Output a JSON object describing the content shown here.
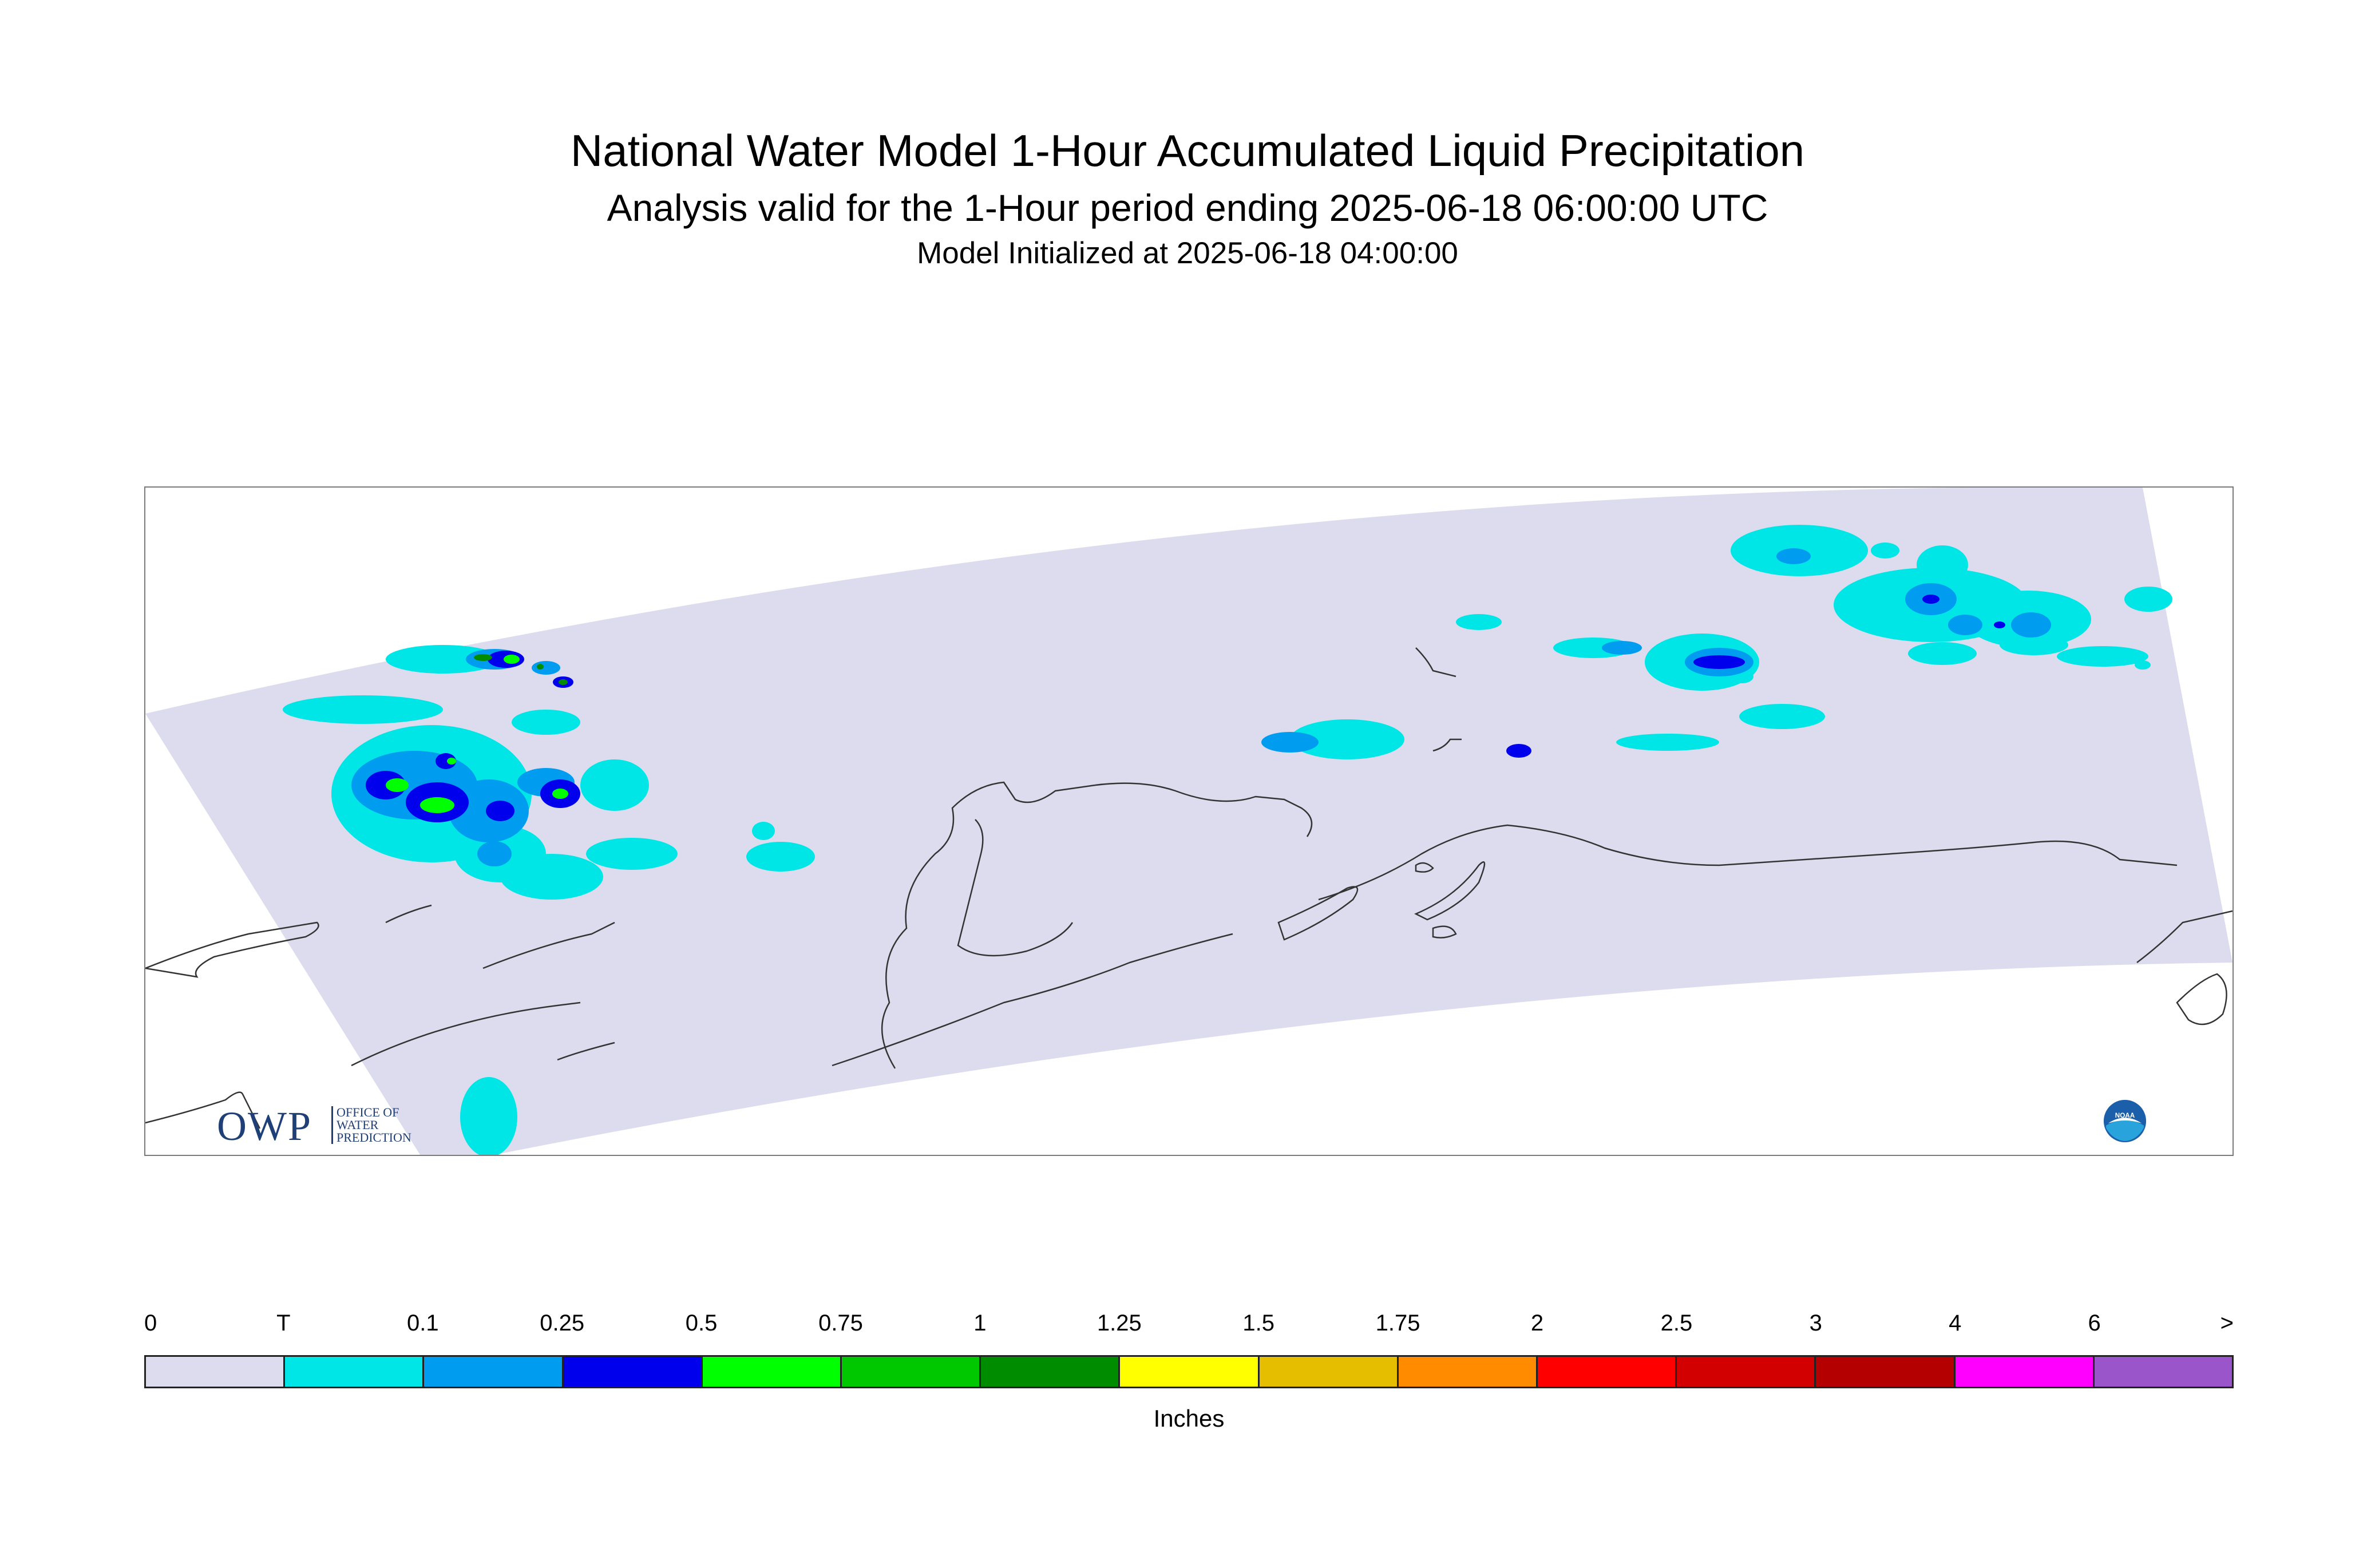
{
  "header": {
    "title": "National Water Model 1-Hour Accumulated Liquid Precipitation",
    "subtitle": "Analysis valid for the 1-Hour period ending 2025-06-18 06:00:00 UTC",
    "initialized": "Model Initialized at 2025-06-18 04:00:00"
  },
  "logos": {
    "owp_letters": "OWP",
    "owp_text": "OFFICE OF\nWATER\nPREDICTION",
    "noaa_text": "NOAA"
  },
  "legend": {
    "labels": [
      "0",
      "T",
      "0.1",
      "0.25",
      "0.5",
      "0.75",
      "1",
      "1.25",
      "1.5",
      "1.75",
      "2",
      "2.5",
      "3",
      "4",
      "6",
      ">"
    ],
    "colors": [
      "#dcdcee",
      "#00e6e6",
      "#009cf0",
      "#0000ec",
      "#00ff00",
      "#00c800",
      "#008c00",
      "#ffff00",
      "#e6be00",
      "#ff8c00",
      "#ff0000",
      "#d20000",
      "#b40000",
      "#ff00ff",
      "#9955c9"
    ],
    "unit": "Inches"
  },
  "colors": {
    "domain_fill": "#dcdcee",
    "coastline": "#333333",
    "trace": "#00e6e6",
    "light_blue": "#009cf0",
    "blue": "#0000ec",
    "green": "#00ff00",
    "dark_green": "#008c00"
  }
}
